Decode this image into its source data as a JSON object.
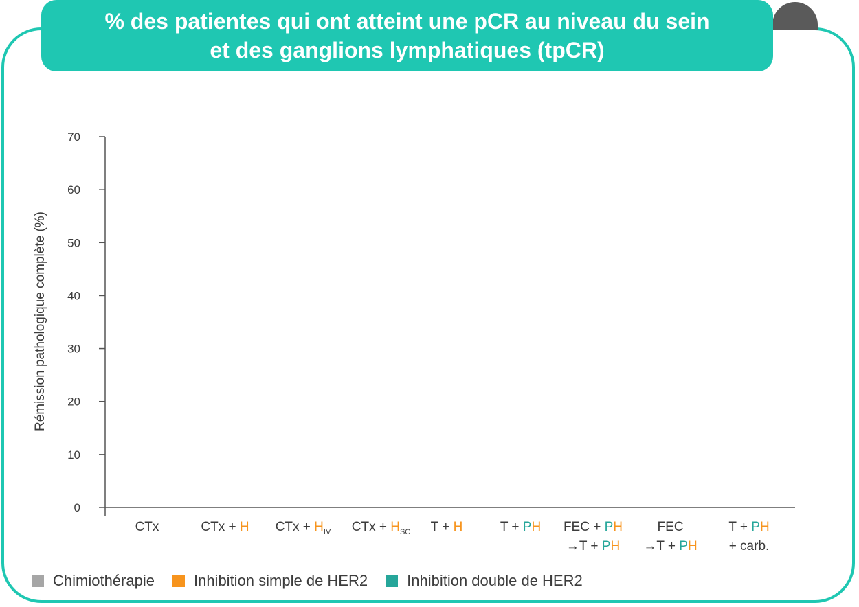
{
  "title": {
    "line1": "% des patientes qui ont atteint une pCR au niveau du sein",
    "line2": "et des ganglions lymphatiques (tpCR)"
  },
  "colors": {
    "accent": "#1fc7b2",
    "tab": "#5a5a5a",
    "chemo": "#a6a6a6",
    "single": "#f7941d",
    "double": "#26a69a",
    "text": "#3c3c3c"
  },
  "chart_data": {
    "type": "bar",
    "ylabel": "Rémission pathologique complète (%)",
    "ylim": [
      0,
      70
    ],
    "yticks": [
      "0",
      "10",
      "20",
      "30",
      "40",
      "50",
      "60",
      "70"
    ],
    "grid": false,
    "categories": [
      {
        "segments": [
          {
            "text": "CTx",
            "c": "text"
          }
        ]
      },
      {
        "segments": [
          {
            "text": "CTx + ",
            "c": "text"
          },
          {
            "text": "H",
            "c": "single"
          }
        ]
      },
      {
        "segments": [
          {
            "text": "CTx + ",
            "c": "text"
          },
          {
            "text": "H",
            "c": "single"
          },
          {
            "text": "IV",
            "c": "text",
            "sub": true
          }
        ]
      },
      {
        "segments": [
          {
            "text": "CTx + ",
            "c": "text"
          },
          {
            "text": "H",
            "c": "single"
          },
          {
            "text": "SC",
            "c": "text",
            "sub": true
          }
        ]
      },
      {
        "segments": [
          {
            "text": "T + ",
            "c": "text"
          },
          {
            "text": "H",
            "c": "single"
          }
        ]
      },
      {
        "segments": [
          {
            "text": "T + ",
            "c": "text"
          },
          {
            "text": "P",
            "c": "double"
          },
          {
            "text": "H",
            "c": "single"
          }
        ]
      },
      {
        "segments": [
          {
            "text": "FEC + ",
            "c": "text"
          },
          {
            "text": "P",
            "c": "double"
          },
          {
            "text": "H",
            "c": "single"
          }
        ],
        "segments2": [
          {
            "text": "→T + ",
            "c": "text"
          },
          {
            "text": "P",
            "c": "double"
          },
          {
            "text": "H",
            "c": "single"
          }
        ]
      },
      {
        "segments": [
          {
            "text": "FEC",
            "c": "text"
          }
        ],
        "segments2": [
          {
            "text": "→T + ",
            "c": "text"
          },
          {
            "text": "P",
            "c": "double"
          },
          {
            "text": "H",
            "c": "single"
          }
        ]
      },
      {
        "segments": [
          {
            "text": "T + ",
            "c": "text"
          },
          {
            "text": "P",
            "c": "double"
          },
          {
            "text": "H",
            "c": "single"
          }
        ],
        "segments2": [
          {
            "text": "+ carb.",
            "c": "text"
          }
        ]
      }
    ],
    "series": []
  },
  "legend": [
    {
      "label": "Chimiothérapie",
      "color": "#a6a6a6"
    },
    {
      "label": "Inhibition simple de HER2",
      "color": "#f7941d"
    },
    {
      "label": "Inhibition double de HER2",
      "color": "#26a69a"
    }
  ]
}
